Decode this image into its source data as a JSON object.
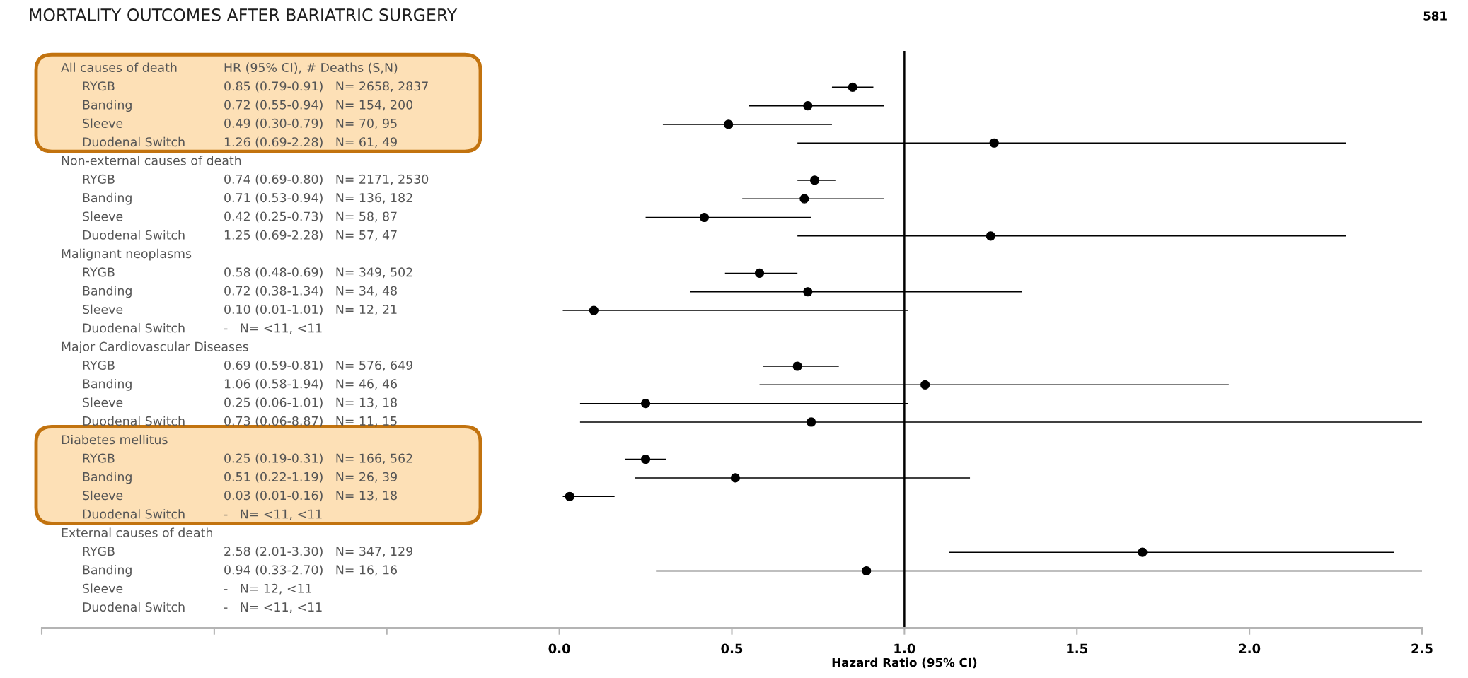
{
  "chart_data": {
    "type": "scatter",
    "orientation": "horizontal",
    "title": "MORTALITY OUTCOMES AFTER BARIATRIC SURGERY",
    "xlabel": "Hazard Ratio (95% CI)",
    "y2label": "HR (95% CI), # Deaths (S,N)",
    "categories": [
      "All causes of death",
      "RYGB",
      "Banding",
      "Sleeve",
      "Duodenal Switch",
      "Non-external causes of death",
      "RYGB",
      "Banding",
      "Sleeve",
      "Duodenal Switch",
      "Malignant neoplasms",
      "RYGB",
      "Banding",
      "Sleeve",
      "Duodenal Switch",
      "Major Cardiovascular Diseases",
      "RYGB",
      "Banding",
      "Sleeve",
      "Duodenal Switch",
      "Diabetes mellitus",
      "RYGB",
      "Banding",
      "Sleeve",
      "Duodenal Switch",
      "External causes of death",
      "RYGB",
      "Banding",
      "Sleeve",
      "Duodenal Switch"
    ],
    "y2_categories": [
      null,
      "0.85 (0.79-0.91)   N= 2658, 2837",
      "0.72 (0.55-0.94)   N= 154, 200",
      "0.49 (0.30-0.79)   N= 70, 95",
      "1.26 (0.69-2.28)   N= 61, 49",
      null,
      "0.74 (0.69-0.80)   N= 2171, 2530",
      "0.71 (0.53-0.94)   N= 136, 182",
      "0.42 (0.25-0.73)   N= 58, 87",
      "1.25 (0.69-2.28)   N= 57, 47",
      null,
      "0.58 (0.48-0.69)   N= 349, 502",
      "0.72 (0.38-1.34)   N= 34, 48",
      "0.10 (0.01-1.01)   N= 12, 21",
      "-   N= <11, <11",
      null,
      "0.69 (0.59-0.81)   N= 576, 649",
      "1.06 (0.58-1.94)   N= 46, 46",
      "0.25 (0.06-1.01)   N= 13, 18",
      "0.73 (0.06-8.87)   N= 11, 15",
      null,
      "0.25 (0.19-0.31)   N= 166, 562",
      "0.51 (0.22-1.19)   N= 26, 39",
      "0.03 (0.01-0.16)   N= 13, 18",
      "-   N= <11, <11",
      null,
      "2.58 (2.01-3.30)   N= 347, 129",
      "0.94 (0.33-2.70)   N= 16, 16",
      "-   N= 12, <11",
      "-   N= <11, <11"
    ],
    "values": [
      null,
      0.85,
      0.72,
      0.49,
      1.26,
      null,
      0.74,
      0.71,
      0.42,
      1.25,
      null,
      0.58,
      0.72,
      0.1,
      null,
      null,
      0.69,
      1.06,
      0.25,
      0.73,
      null,
      0.25,
      0.51,
      0.03,
      null,
      null,
      1.69,
      0.89,
      null,
      null
    ],
    "errors": [
      null,
      [
        0.79,
        0.91
      ],
      [
        0.55,
        0.94
      ],
      [
        0.3,
        0.79
      ],
      [
        0.69,
        2.28
      ],
      null,
      [
        0.69,
        0.8
      ],
      [
        0.53,
        0.94
      ],
      [
        0.25,
        0.73
      ],
      [
        0.69,
        2.28
      ],
      null,
      [
        0.48,
        0.69
      ],
      [
        0.38,
        1.34
      ],
      [
        0.01,
        1.01
      ],
      null,
      null,
      [
        0.59,
        0.81
      ],
      [
        0.58,
        1.94
      ],
      [
        0.06,
        1.01
      ],
      [
        0.06,
        2.5
      ],
      null,
      [
        0.19,
        0.31
      ],
      [
        0.22,
        1.19
      ],
      [
        0.01,
        0.16
      ],
      null,
      null,
      [
        1.13,
        2.42
      ],
      [
        0.28,
        2.5
      ],
      null,
      null
    ],
    "color": "#000000",
    "marker": "circle",
    "xlim": [
      -1.5,
      2.5
    ],
    "xticks": [
      {
        "value": -1.5,
        "label": null
      },
      {
        "value": -1,
        "label": null
      },
      {
        "value": -0.5,
        "label": null
      },
      {
        "value": 0,
        "label": "0.0"
      },
      {
        "value": 0.5,
        "label": "0.5"
      },
      {
        "value": 1,
        "label": "1.0"
      },
      {
        "value": 1.5,
        "label": "1.5"
      },
      {
        "value": 2,
        "label": "2.0"
      },
      {
        "value": 2.5,
        "label": "2.5"
      }
    ],
    "ref_lines": [
      {
        "axis": "x",
        "value": 1,
        "color": "#000000"
      }
    ],
    "annotations": [
      "581"
    ]
  }
}
